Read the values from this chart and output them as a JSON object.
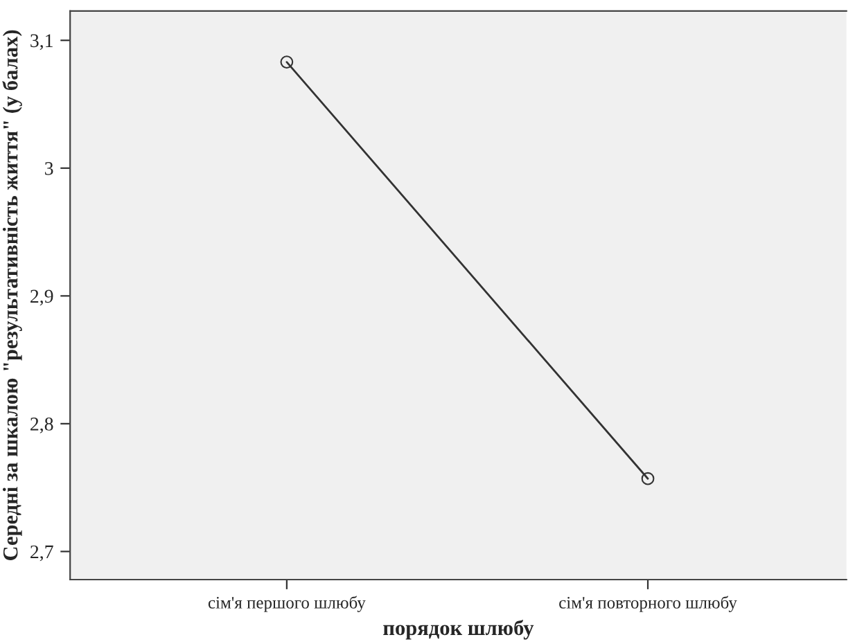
{
  "chart_data": {
    "type": "line",
    "xlabel": "порядок шлюбу",
    "ylabel": "Середні за шкалою \"результативність життя\" (у балах)",
    "categories": [
      "сім'я першого шлюбу",
      "сім'я повторного шлюбу"
    ],
    "series": [
      {
        "color": "#333333",
        "values": [
          3.083,
          2.757
        ]
      }
    ],
    "ylim": [
      2.678,
      3.123
    ],
    "yticks": [
      {
        "value": 2.7,
        "label": "2,7"
      },
      {
        "value": 2.8,
        "label": "2,8"
      },
      {
        "value": 2.9,
        "label": "2,9"
      },
      {
        "value": 3,
        "label": "3"
      },
      {
        "value": 3.1,
        "label": "3,1"
      }
    ],
    "marker": "circle",
    "line_style": "solid",
    "grid": false,
    "legend": false
  }
}
